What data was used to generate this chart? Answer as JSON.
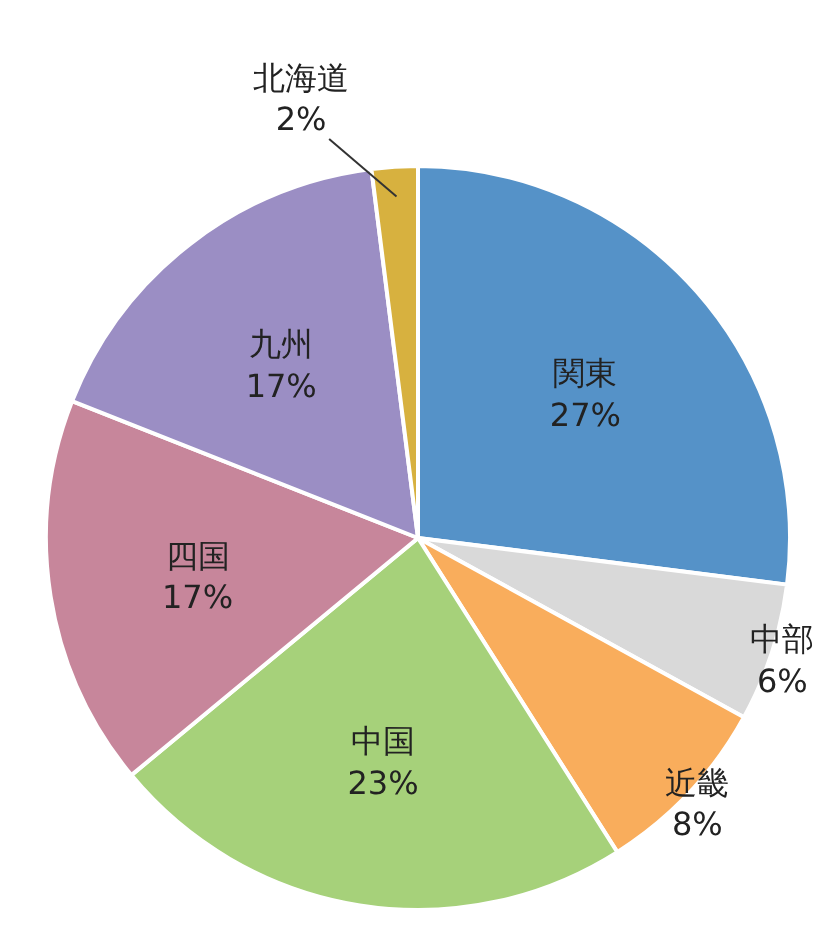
{
  "chart_data": {
    "type": "pie",
    "categories": [
      "関東",
      "中部",
      "近畿",
      "中国",
      "四国",
      "九州",
      "北海道"
    ],
    "values": [
      27,
      6,
      8,
      23,
      17,
      17,
      2
    ],
    "colors": [
      "#5592c8",
      "#d9d9d9",
      "#f9ad5c",
      "#a6d17a",
      "#c7869b",
      "#9b8ec4",
      "#d7b13f"
    ],
    "value_labels": [
      "27%",
      "6%",
      "8%",
      "23%",
      "17%",
      "17%",
      "2%"
    ]
  }
}
